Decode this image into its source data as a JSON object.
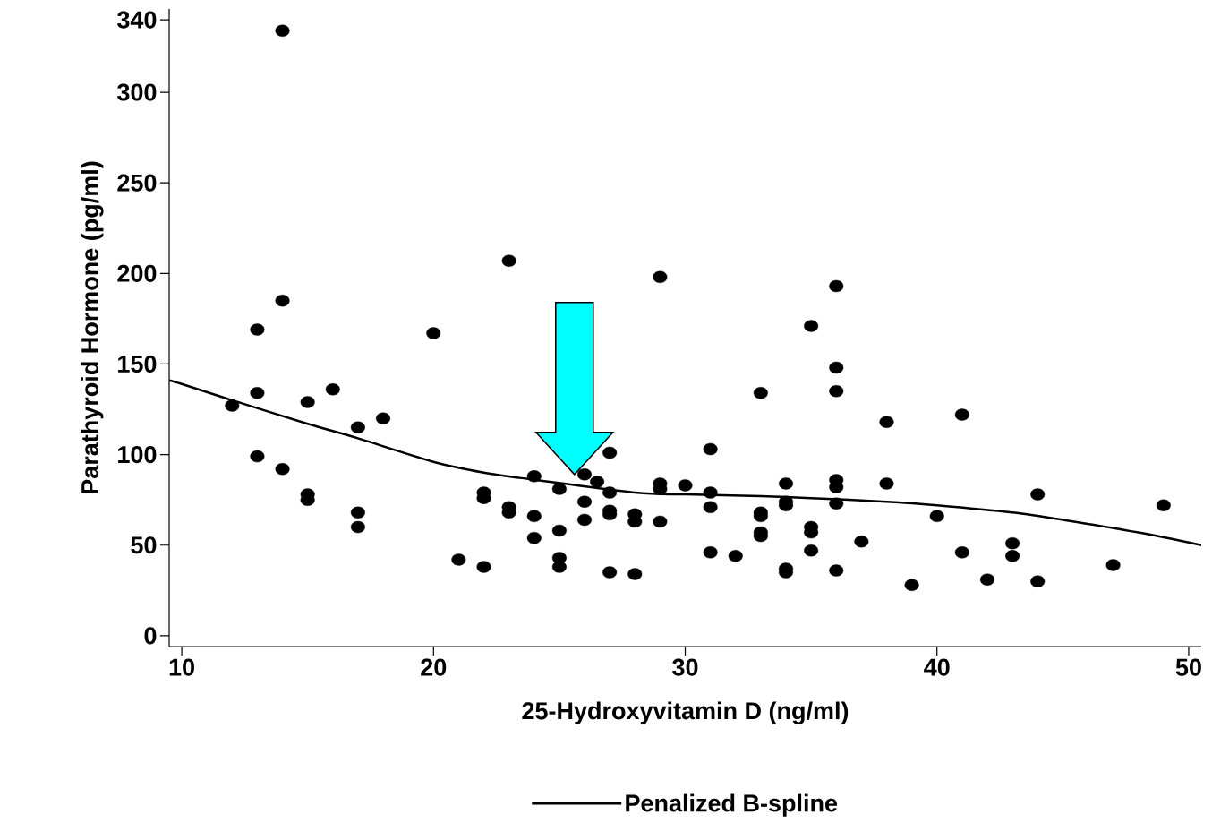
{
  "chart_data": {
    "type": "scatter",
    "xlabel": "25-Hydroxyvitamin D (ng/ml)",
    "ylabel": "Parathyroid Hormone (pg/ml)",
    "xlim": [
      9.5,
      50.5
    ],
    "xticks": [
      10,
      20,
      30,
      40,
      50
    ],
    "ylim": [
      -6,
      346
    ],
    "yticks": [
      0,
      50,
      100,
      150,
      200,
      250,
      300,
      340
    ],
    "grid": false,
    "legend": "bottom",
    "series": [
      {
        "color": "#000000",
        "marker": "circle",
        "x": [
          12,
          13,
          13,
          13,
          14,
          14,
          14,
          15,
          15,
          15,
          16,
          17,
          17,
          17,
          18,
          20,
          21,
          22,
          22,
          22,
          23,
          23,
          23,
          24,
          24,
          24,
          25,
          25,
          25,
          25,
          26,
          26,
          26,
          26.5,
          27,
          27,
          27,
          27,
          27,
          28,
          28,
          28,
          29,
          29,
          29,
          29,
          30,
          31,
          31,
          31,
          31,
          32,
          33,
          33,
          33,
          33,
          33,
          34,
          34,
          34,
          34,
          34,
          35,
          35,
          35,
          35,
          36,
          36,
          36,
          36,
          36,
          36,
          36,
          37,
          38,
          38,
          39,
          40,
          41,
          41,
          42,
          43,
          43,
          44,
          44,
          47,
          49
        ],
        "values": [
          127,
          169,
          134,
          99,
          334,
          185,
          92,
          129,
          78,
          75,
          136,
          115,
          68,
          60,
          120,
          167,
          42,
          79,
          76,
          38,
          207,
          71,
          68,
          88,
          66,
          54,
          81,
          58,
          43,
          38,
          89,
          74,
          64,
          85,
          101,
          79,
          69,
          67,
          35,
          67,
          63,
          34,
          198,
          84,
          81,
          63,
          83,
          103,
          79,
          71,
          46,
          44,
          134,
          68,
          66,
          57,
          55,
          84,
          74,
          72,
          37,
          35,
          171,
          60,
          57,
          47,
          193,
          148,
          135,
          86,
          82,
          73,
          36,
          52,
          118,
          84,
          28,
          66,
          122,
          46,
          31,
          51,
          44,
          78,
          30,
          39,
          72
        ]
      },
      {
        "type": "line",
        "name": "Penalized B-spline",
        "color": "#000000",
        "line_style": "solid",
        "x": [
          9.5,
          10,
          12,
          15,
          17,
          20,
          22,
          23.5,
          28,
          30,
          33,
          35,
          38,
          40,
          43,
          45,
          48,
          50.5
        ],
        "values": [
          141,
          139,
          130,
          117,
          109,
          96,
          90,
          87,
          79,
          78,
          77,
          76,
          74,
          72,
          68,
          64,
          57,
          50
        ]
      }
    ]
  }
}
